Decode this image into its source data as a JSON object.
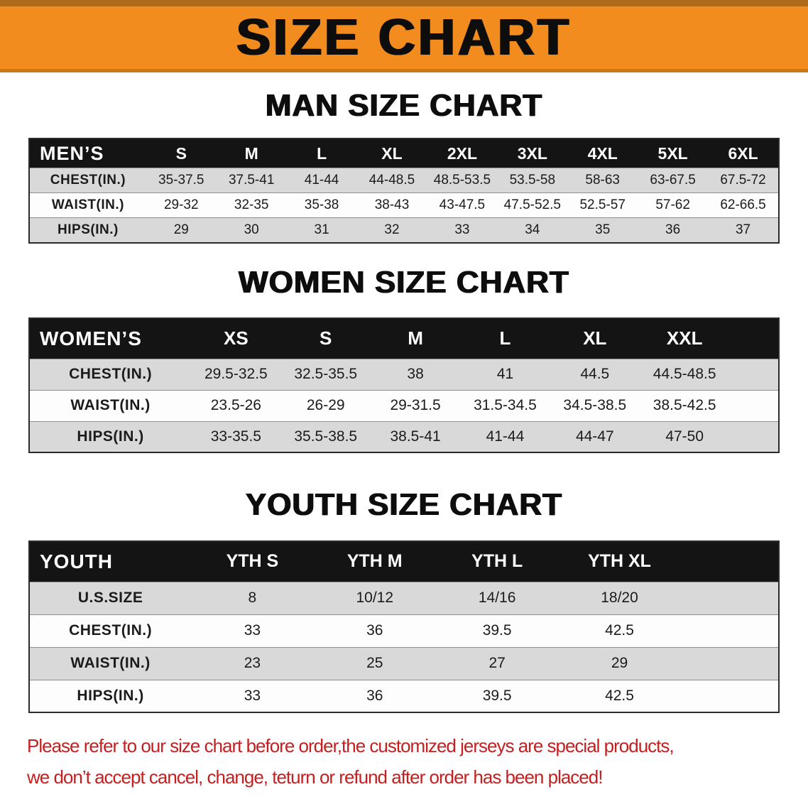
{
  "banner": {
    "title": "SIZE CHART",
    "bg_color": "#F28C1E",
    "border_color": "#B06A1C"
  },
  "sections": [
    {
      "id": "men",
      "heading": "MAN SIZE CHART",
      "table": {
        "label": "MEN’S",
        "columns": [
          "S",
          "M",
          "L",
          "XL",
          "2XL",
          "3XL",
          "4XL",
          "5XL",
          "6XL"
        ],
        "rows": [
          {
            "label": "CHEST(IN.)",
            "values": [
              "35-37.5",
              "37.5-41",
              "41-44",
              "44-48.5",
              "48.5-53.5",
              "53.5-58",
              "58-63",
              "63-67.5",
              "67.5-72"
            ]
          },
          {
            "label": "WAIST(IN.)",
            "values": [
              "29-32",
              "32-35",
              "35-38",
              "38-43",
              "43-47.5",
              "47.5-52.5",
              "52.5-57",
              "57-62",
              "62-66.5"
            ]
          },
          {
            "label": "HIPS(IN.)",
            "values": [
              "29",
              "30",
              "31",
              "32",
              "33",
              "34",
              "35",
              "36",
              "37"
            ]
          }
        ]
      }
    },
    {
      "id": "women",
      "heading": "WOMEN SIZE CHART",
      "table": {
        "label": "WOMEN’S",
        "columns": [
          "XS",
          "S",
          "M",
          "L",
          "XL",
          "XXL"
        ],
        "rows": [
          {
            "label": "CHEST(IN.)",
            "values": [
              "29.5-32.5",
              "32.5-35.5",
              "38",
              "41",
              "44.5",
              "44.5-48.5"
            ]
          },
          {
            "label": "WAIST(IN.)",
            "values": [
              "23.5-26",
              "26-29",
              "29-31.5",
              "31.5-34.5",
              "34.5-38.5",
              "38.5-42.5"
            ]
          },
          {
            "label": "HIPS(IN.)",
            "values": [
              "33-35.5",
              "35.5-38.5",
              "38.5-41",
              "41-44",
              "44-47",
              "47-50"
            ]
          }
        ]
      }
    },
    {
      "id": "youth",
      "heading": "YOUTH SIZE CHART",
      "table": {
        "label": "YOUTH",
        "columns": [
          "YTH S",
          "YTH M",
          "YTH L",
          "YTH XL"
        ],
        "rows": [
          {
            "label": "U.S.SIZE",
            "values": [
              "8",
              "10/12",
              "14/16",
              "18/20"
            ]
          },
          {
            "label": "CHEST(IN.)",
            "values": [
              "33",
              "36",
              "39.5",
              "42.5"
            ]
          },
          {
            "label": "WAIST(IN.)",
            "values": [
              "23",
              "25",
              "27",
              "29"
            ]
          },
          {
            "label": "HIPS(IN.)",
            "values": [
              "33",
              "36",
              "39.5",
              "42.5"
            ]
          }
        ]
      }
    }
  ],
  "disclaimer": {
    "lines": [
      "Please refer to our size chart before order,the customized jerseys are special products,",
      "we don’t accept cancel, change, teturn or refund after order has been placed!"
    ],
    "color": "#C42020"
  },
  "colors": {
    "table_header_bg": "#141414",
    "table_header_text": "#FFFFFF",
    "row_alt_bg": "#D9D9D9",
    "row_bg": "#FDFDFD"
  }
}
